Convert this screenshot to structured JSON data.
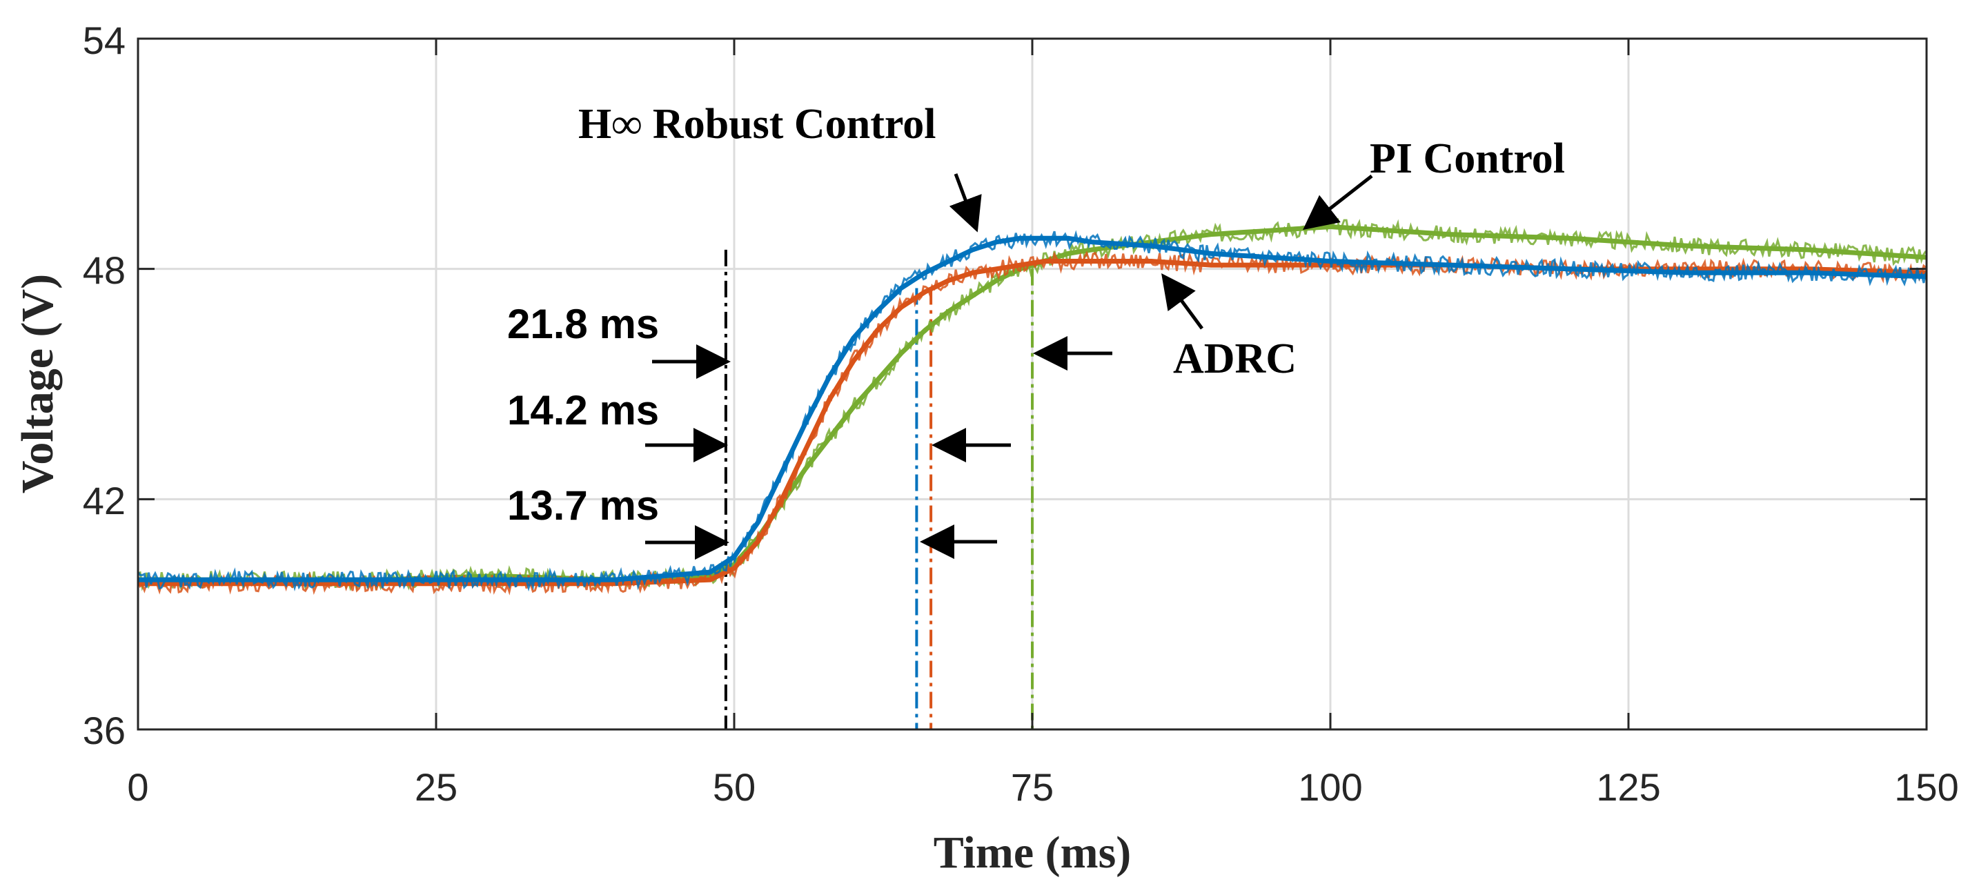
{
  "colors": {
    "hinf": "#0072BD",
    "adrc": "#D95319",
    "pi": "#77AC30",
    "grid": "#dcdcdc",
    "axis": "#262626",
    "black": "#000000"
  },
  "chart_data": {
    "type": "line",
    "title": "",
    "xlabel": "Time (ms)",
    "ylabel": "Voltage (V)",
    "xlim": [
      0,
      150
    ],
    "ylim": [
      36,
      54
    ],
    "xticks": [
      0,
      25,
      50,
      75,
      100,
      125,
      150
    ],
    "yticks": [
      36,
      42,
      48,
      54
    ],
    "xtick_labels": [
      "0",
      "25",
      "50",
      "75",
      100,
      "125",
      "150"
    ],
    "ytick_labels": [
      "36",
      "42",
      "48",
      "54"
    ],
    "grid": true,
    "series": [
      {
        "name": "PI Control",
        "key": "pi",
        "color": "#77AC30",
        "x": [
          0,
          10,
          20,
          30,
          40,
          48,
          50,
          52,
          54,
          56,
          58,
          60,
          62,
          64,
          66,
          68,
          70,
          72,
          74,
          76,
          78,
          80,
          85,
          90,
          95,
          100,
          105,
          110,
          120,
          130,
          140,
          150
        ],
        "y": [
          39.9,
          39.9,
          39.9,
          40.0,
          39.9,
          40.0,
          40.3,
          41.0,
          41.9,
          42.8,
          43.6,
          44.4,
          45.1,
          45.8,
          46.4,
          46.9,
          47.3,
          47.7,
          48.0,
          48.2,
          48.4,
          48.5,
          48.7,
          48.9,
          49.0,
          49.1,
          49.0,
          48.9,
          48.8,
          48.6,
          48.5,
          48.3
        ]
      },
      {
        "name": "ADRC",
        "key": "adrc",
        "color": "#D95319",
        "x": [
          0,
          10,
          20,
          30,
          40,
          48,
          50,
          52,
          54,
          56,
          58,
          60,
          62,
          64,
          66,
          68,
          70,
          72,
          74,
          76,
          78,
          80,
          85,
          90,
          100,
          110,
          120,
          130,
          140,
          150
        ],
        "y": [
          39.8,
          39.8,
          39.8,
          39.8,
          39.8,
          39.9,
          40.2,
          40.9,
          42.0,
          43.3,
          44.6,
          45.6,
          46.4,
          47.0,
          47.4,
          47.7,
          47.9,
          48.0,
          48.1,
          48.2,
          48.2,
          48.2,
          48.2,
          48.1,
          48.1,
          48.1,
          48.0,
          48.0,
          48.0,
          47.9
        ]
      },
      {
        "name": "H∞ Robust Control",
        "key": "hinf",
        "color": "#0072BD",
        "x": [
          0,
          10,
          20,
          30,
          40,
          48,
          50,
          52,
          54,
          56,
          58,
          60,
          62,
          64,
          66,
          68,
          70,
          72,
          74,
          76,
          78,
          80,
          85,
          90,
          100,
          110,
          120,
          130,
          140,
          150
        ],
        "y": [
          39.9,
          39.9,
          39.9,
          39.9,
          39.9,
          40.1,
          40.5,
          41.4,
          42.7,
          44.0,
          45.2,
          46.2,
          46.9,
          47.5,
          47.9,
          48.2,
          48.5,
          48.7,
          48.8,
          48.8,
          48.8,
          48.7,
          48.6,
          48.4,
          48.2,
          48.1,
          48.0,
          47.9,
          47.9,
          47.8
        ]
      }
    ],
    "markers": [
      {
        "key": "start",
        "x": 49.3,
        "color": "#000000",
        "y_top": 48.5,
        "y_bottom": 36
      },
      {
        "key": "hinf",
        "x": 65.3,
        "color": "#0072BD",
        "y_top": 47.5,
        "y_bottom": 36
      },
      {
        "key": "adrc",
        "x": 66.5,
        "color": "#D95319",
        "y_top": 47.5,
        "y_bottom": 36
      },
      {
        "key": "pi",
        "x": 75.0,
        "color": "#77AC30",
        "y_top": 48.0,
        "y_bottom": 36
      }
    ],
    "annotations": {
      "settling_21_8": "21.8 ms",
      "settling_14_2": "14.2 ms",
      "settling_13_7": "13.7 ms",
      "hinf_label": "H∞ Robust Control",
      "pi_label": "PI Control",
      "adrc_label": "ADRC"
    }
  }
}
